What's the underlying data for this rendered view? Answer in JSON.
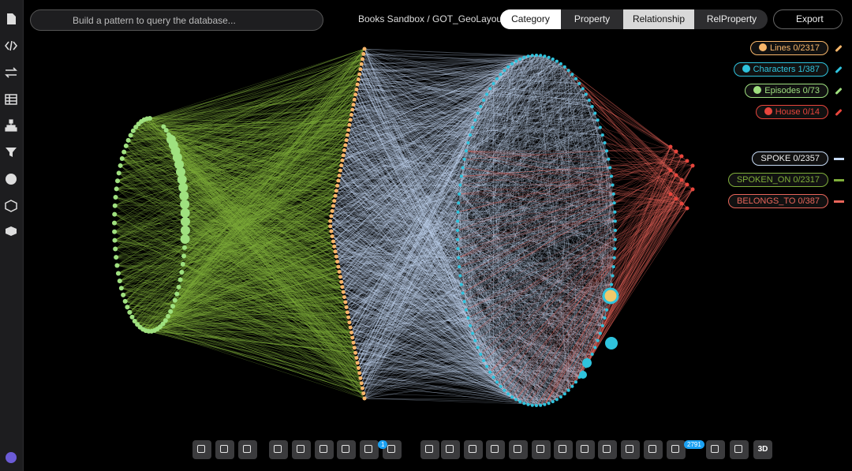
{
  "search": {
    "placeholder": "Build a pattern to query the database..."
  },
  "breadcrumb": "Books Sandbox / GOT_GeoLayout",
  "view_modes": [
    {
      "label": "Category",
      "active": true
    },
    {
      "label": "Property",
      "active": false
    },
    {
      "label": "Relationship",
      "active": true
    },
    {
      "label": "RelProperty",
      "active": false
    }
  ],
  "export": "Export",
  "legend": {
    "categories": [
      {
        "label": "Lines 0/2317",
        "color": "#f7b66a"
      },
      {
        "label": "Characters 1/387",
        "color": "#2fc3dd"
      },
      {
        "label": "Episodes 0/73",
        "color": "#9fe07f"
      },
      {
        "label": "House 0/14",
        "color": "#e8453c"
      }
    ],
    "relationships": [
      {
        "label": "SPOKE 0/2357",
        "color": "#c7dbf5"
      },
      {
        "label": "SPOKEN_ON 0/2317",
        "color": "#7fae3a"
      },
      {
        "label": "BELONGS_TO 0/387",
        "color": "#e8655a"
      }
    ]
  },
  "toolbar": {
    "badges": [
      "1",
      "2791"
    ],
    "label_3d": "3D"
  }
}
